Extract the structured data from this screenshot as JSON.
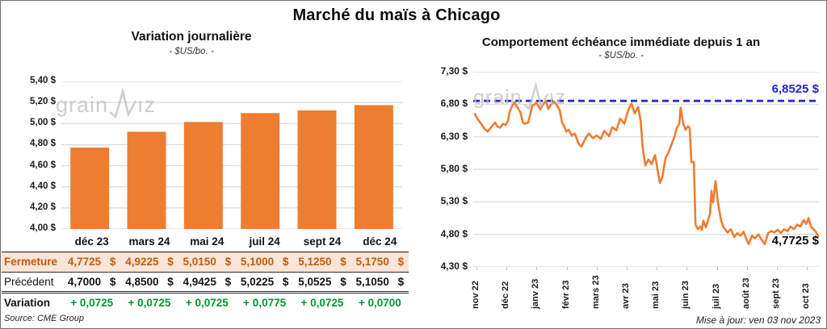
{
  "page_title": "Marché du maïs à Chicago",
  "colors": {
    "accent_orange": "#ED7D31",
    "reference_blue": "#2525CD",
    "variation_green": "#009632",
    "close_row_bg": "#FBE5D6",
    "close_row_text": "#C05A11",
    "gridline": "#D9D9D9"
  },
  "watermark": {
    "part1": "grain",
    "part2": "ız",
    "icon": "zigzag-line-icon"
  },
  "left_chart": {
    "title": "Variation journalière",
    "subtitle": "- $US/bo. -"
  },
  "right_chart": {
    "title": "Comportement échéance immédiate depuis 1 an",
    "subtitle": "- $US/bo. -",
    "reference_label": "6,8525 $",
    "last_label": "4,7725 $",
    "updated": "Mise à jour: ven 03 nov 2023"
  },
  "table": {
    "col_headers": [
      "déc 23",
      "mars 24",
      "mai 24",
      "juil 24",
      "sept 24",
      "déc 24"
    ],
    "rows": [
      {
        "label": "Fermeture",
        "values": [
          "4,7725 $",
          "4,9225 $",
          "5,0150 $",
          "5,1000 $",
          "5,1250 $",
          "5,1750 $"
        ]
      },
      {
        "label": "Précédent",
        "values": [
          "4,7000 $",
          "4,8500 $",
          "4,9425 $",
          "5,0225 $",
          "5,0525 $",
          "5,1050 $"
        ]
      },
      {
        "label": "Variation",
        "values": [
          "+ 0,0725",
          "+ 0,0725",
          "+ 0,0725",
          "+ 0,0775",
          "+ 0,0725",
          "+ 0,0700"
        ]
      }
    ],
    "source": "Source: CME Group"
  },
  "chart_data": [
    {
      "type": "bar",
      "title": "Variation journalière",
      "subtitle": "- $US/bo. -",
      "categories": [
        "déc 23",
        "mars 24",
        "mai 24",
        "juil 24",
        "sept 24",
        "déc 24"
      ],
      "values": [
        4.7725,
        4.9225,
        5.015,
        5.1,
        5.125,
        5.175
      ],
      "ylim": [
        4.0,
        5.4
      ],
      "ytick_step": 0.2,
      "y_tick_labels": [
        "5,40 $",
        "5,20 $",
        "5,00 $",
        "4,80 $",
        "4,60 $",
        "4,40 $",
        "4,20 $",
        "4,00 $"
      ],
      "bar_color": "#ED7D31",
      "grid": true,
      "legend": "none"
    },
    {
      "type": "line",
      "title": "Comportement échéance immédiate depuis 1 an",
      "subtitle": "- $US/bo. -",
      "x_tick_labels": [
        "nov 22",
        "déc 22",
        "janv 23",
        "févr 23",
        "mars 23",
        "avr 23",
        "mai 23",
        "juin 23",
        "juil 23",
        "août 23",
        "sept 23",
        "oct 23"
      ],
      "y_tick_labels": [
        "7,30 $",
        "6,80 $",
        "6,30 $",
        "5,80 $",
        "5,30 $",
        "4,80 $",
        "4,30 $"
      ],
      "ylim": [
        4.3,
        7.3
      ],
      "ytick_step": 0.5,
      "line_color": "#ED7D31",
      "grid": true,
      "legend": "none",
      "reference_line": {
        "value": 6.8525,
        "label": "6,8525 $",
        "color": "#2525CD",
        "style": "dashed"
      },
      "last_point": {
        "value": 4.7725,
        "label": "4,7725 $"
      },
      "points_x_percent_value": [
        [
          0.5,
          6.65
        ],
        [
          1.2,
          6.58
        ],
        [
          2.3,
          6.5
        ],
        [
          3.3,
          6.42
        ],
        [
          4.2,
          6.38
        ],
        [
          5.2,
          6.45
        ],
        [
          6.3,
          6.52
        ],
        [
          7.0,
          6.46
        ],
        [
          7.7,
          6.44
        ],
        [
          8.6,
          6.5
        ],
        [
          9.3,
          6.48
        ],
        [
          10.1,
          6.55
        ],
        [
          10.5,
          6.68
        ],
        [
          11.3,
          6.78
        ],
        [
          11.9,
          6.83
        ],
        [
          12.8,
          6.75
        ],
        [
          13.6,
          6.68
        ],
        [
          14.4,
          6.52
        ],
        [
          14.9,
          6.5
        ],
        [
          15.9,
          6.52
        ],
        [
          16.5,
          6.65
        ],
        [
          17.1,
          6.78
        ],
        [
          17.8,
          6.8
        ],
        [
          18.2,
          6.83
        ],
        [
          19.0,
          6.76
        ],
        [
          19.4,
          6.72
        ],
        [
          20.2,
          6.8
        ],
        [
          21.0,
          6.85
        ],
        [
          21.7,
          6.73
        ],
        [
          22.5,
          6.8
        ],
        [
          23.4,
          6.84
        ],
        [
          24.2,
          6.78
        ],
        [
          25.0,
          6.71
        ],
        [
          25.7,
          6.52
        ],
        [
          26.4,
          6.45
        ],
        [
          26.9,
          6.38
        ],
        [
          27.6,
          6.41
        ],
        [
          28.5,
          6.32
        ],
        [
          29.4,
          6.35
        ],
        [
          30.4,
          6.2
        ],
        [
          31.3,
          6.15
        ],
        [
          32.5,
          6.28
        ],
        [
          33.4,
          6.35
        ],
        [
          34.6,
          6.28
        ],
        [
          35.7,
          6.32
        ],
        [
          36.9,
          6.27
        ],
        [
          37.9,
          6.39
        ],
        [
          39.3,
          6.31
        ],
        [
          40.2,
          6.45
        ],
        [
          41.4,
          6.4
        ],
        [
          42.5,
          6.58
        ],
        [
          43.7,
          6.5
        ],
        [
          44.9,
          6.72
        ],
        [
          45.8,
          6.81
        ],
        [
          46.7,
          6.66
        ],
        [
          47.7,
          6.76
        ],
        [
          48.4,
          6.55
        ],
        [
          49.1,
          6.1
        ],
        [
          49.8,
          5.86
        ],
        [
          50.7,
          5.95
        ],
        [
          51.6,
          5.88
        ],
        [
          52.6,
          6.02
        ],
        [
          53.3,
          5.8
        ],
        [
          54.0,
          5.59
        ],
        [
          54.7,
          5.68
        ],
        [
          55.6,
          5.97
        ],
        [
          56.5,
          6.06
        ],
        [
          57.2,
          6.16
        ],
        [
          58.2,
          6.3
        ],
        [
          58.9,
          6.44
        ],
        [
          59.6,
          6.5
        ],
        [
          60.0,
          6.75
        ],
        [
          60.7,
          6.51
        ],
        [
          61.4,
          6.41
        ],
        [
          62.1,
          6.46
        ],
        [
          62.6,
          6.44
        ],
        [
          63.1,
          5.91
        ],
        [
          63.8,
          5.91
        ],
        [
          64.3,
          4.95
        ],
        [
          65.0,
          4.88
        ],
        [
          65.7,
          4.92
        ],
        [
          66.1,
          4.87
        ],
        [
          66.6,
          5.01
        ],
        [
          67.3,
          4.91
        ],
        [
          68.5,
          5.12
        ],
        [
          68.9,
          5.47
        ],
        [
          69.4,
          5.29
        ],
        [
          70.1,
          5.62
        ],
        [
          70.8,
          5.29
        ],
        [
          71.7,
          5.01
        ],
        [
          72.4,
          4.91
        ],
        [
          73.6,
          4.83
        ],
        [
          74.5,
          4.88
        ],
        [
          75.5,
          4.76
        ],
        [
          76.4,
          4.82
        ],
        [
          77.3,
          4.78
        ],
        [
          78.2,
          4.84
        ],
        [
          79.2,
          4.7
        ],
        [
          79.7,
          4.65
        ],
        [
          80.6,
          4.78
        ],
        [
          81.5,
          4.74
        ],
        [
          82.5,
          4.8
        ],
        [
          83.4,
          4.72
        ],
        [
          84.3,
          4.65
        ],
        [
          85.3,
          4.82
        ],
        [
          86.2,
          4.85
        ],
        [
          87.1,
          4.83
        ],
        [
          88.1,
          4.87
        ],
        [
          89.0,
          4.82
        ],
        [
          89.9,
          4.88
        ],
        [
          90.9,
          4.85
        ],
        [
          91.8,
          4.92
        ],
        [
          92.8,
          4.88
        ],
        [
          93.7,
          4.95
        ],
        [
          94.6,
          4.92
        ],
        [
          95.6,
          5.02
        ],
        [
          96.3,
          4.96
        ],
        [
          97.0,
          5.05
        ],
        [
          97.7,
          4.92
        ],
        [
          98.4,
          4.88
        ],
        [
          99.1,
          4.84
        ],
        [
          99.8,
          4.7725
        ]
      ]
    }
  ]
}
